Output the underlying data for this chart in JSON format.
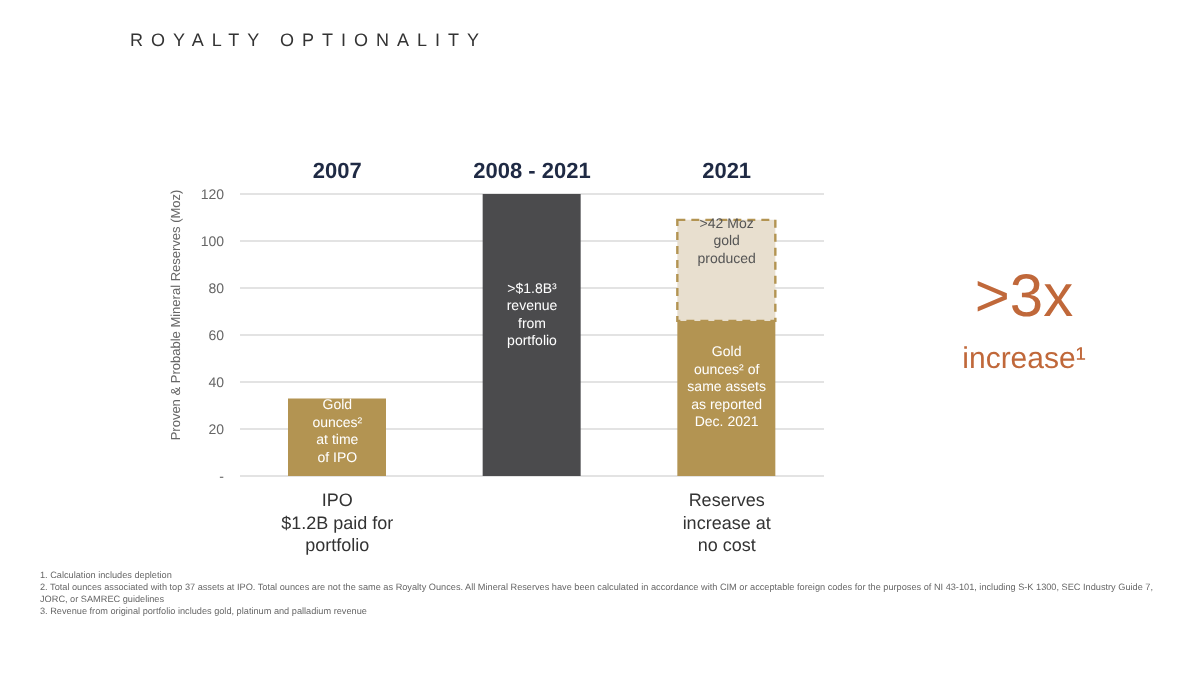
{
  "chart_data": {
    "type": "bar",
    "stacked": true,
    "title": "ROYALTY OPTIONALITY",
    "ylabel": "Proven & Probable Mineral Reserves (Moz)",
    "categories": [
      "2007",
      "2008 - 2021",
      "2021"
    ],
    "series": [
      {
        "color": "#b39452",
        "values": [
          33,
          null,
          66
        ],
        "value_labels": [
          "Gold\nounces²\nat time\nof IPO",
          null,
          "Gold\nounces² of\nsame assets\nas reported\nDec. 2021"
        ]
      },
      {
        "color": "#4b4b4d",
        "values": [
          null,
          120,
          null
        ],
        "value_labels": [
          null,
          ">$1.8B³\nrevenue\nfrom\nportfolio",
          null
        ]
      },
      {
        "color": "#e8dfcf",
        "values": [
          null,
          null,
          43
        ],
        "line_style": "dashed",
        "value_labels": [
          null,
          null,
          ">42 Moz\ngold\nproduced"
        ]
      }
    ],
    "ylim": [
      0,
      120
    ],
    "yticks": [
      {
        "value": 0,
        "label": "-"
      },
      20,
      40,
      60,
      80,
      100,
      120
    ],
    "grid": "y",
    "legend": false,
    "annotations": [
      "IPO\n$1.2B paid for\nportfolio",
      "Reserves\nincrease at\nno cost",
      ">3x\nincrease¹",
      "1.   Calculation includes depletion",
      "2.   Total ounces associated with top 37 assets at IPO. Total ounces are not the same as Royalty Ounces. All Mineral Reserves have been calculated in accordance with CIM or acceptable foreign codes for the purposes of NI 43-101, including S-K 1300, SEC Industry Guide 7, JORC, or SAMREC guidelines",
      "3.   Revenue from original portfolio includes gold, platinum and palladium revenue"
    ]
  }
}
